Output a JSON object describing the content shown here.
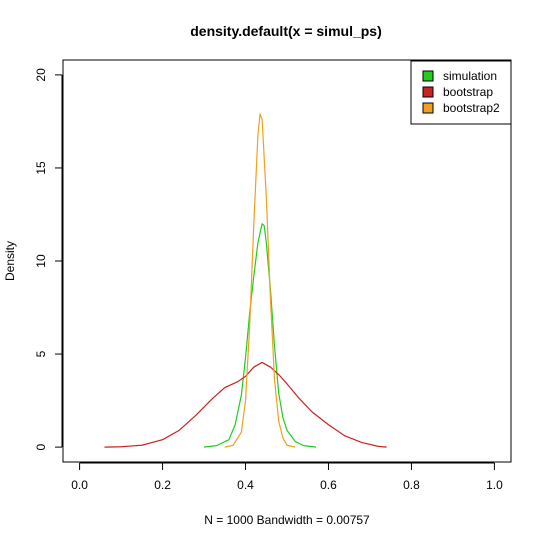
{
  "chart_data": {
    "type": "line",
    "title": "density.default(x = simul_ps)",
    "xlabel": "N = 1000   Bandwidth = 0.00757",
    "ylabel": "Density",
    "xlim": [
      -0.04,
      1.04
    ],
    "ylim": [
      -0.8,
      20.8
    ],
    "xticks": [
      0.0,
      0.2,
      0.4,
      0.6,
      0.8,
      1.0
    ],
    "xtick_labels": [
      "0.0",
      "0.2",
      "0.4",
      "0.6",
      "0.8",
      "1.0"
    ],
    "yticks": [
      0,
      5,
      10,
      15,
      20
    ],
    "ytick_labels": [
      "0",
      "5",
      "10",
      "15",
      "20"
    ],
    "legend_position": "top-right",
    "series": [
      {
        "name": "simulation",
        "color": "#22cc22",
        "x": [
          0.3,
          0.33,
          0.36,
          0.375,
          0.39,
          0.4,
          0.41,
          0.42,
          0.43,
          0.44,
          0.445,
          0.45,
          0.46,
          0.47,
          0.48,
          0.49,
          0.5,
          0.52,
          0.54,
          0.57
        ],
        "y": [
          0.0,
          0.08,
          0.4,
          1.2,
          2.8,
          4.8,
          7.2,
          9.2,
          11.0,
          12.0,
          11.9,
          11.0,
          8.5,
          5.4,
          2.9,
          1.6,
          0.9,
          0.3,
          0.08,
          0.0
        ]
      },
      {
        "name": "bootstrap",
        "color": "#cc2222",
        "x": [
          0.06,
          0.1,
          0.15,
          0.2,
          0.24,
          0.28,
          0.32,
          0.35,
          0.38,
          0.4,
          0.42,
          0.44,
          0.46,
          0.48,
          0.5,
          0.53,
          0.56,
          0.6,
          0.64,
          0.68,
          0.72,
          0.74
        ],
        "y": [
          0.0,
          0.02,
          0.1,
          0.4,
          0.9,
          1.7,
          2.6,
          3.2,
          3.5,
          3.8,
          4.3,
          4.55,
          4.3,
          3.9,
          3.4,
          2.6,
          1.9,
          1.2,
          0.6,
          0.25,
          0.04,
          0.0
        ]
      },
      {
        "name": "bootstrap2",
        "color": "#f0a020",
        "x": [
          0.35,
          0.37,
          0.39,
          0.4,
          0.41,
          0.42,
          0.43,
          0.435,
          0.44,
          0.45,
          0.46,
          0.47,
          0.48,
          0.49,
          0.5,
          0.52
        ],
        "y": [
          0.0,
          0.1,
          0.8,
          2.5,
          6.5,
          12.0,
          16.8,
          17.9,
          17.6,
          13.5,
          8.0,
          3.6,
          1.4,
          0.5,
          0.1,
          0.0
        ]
      }
    ]
  }
}
